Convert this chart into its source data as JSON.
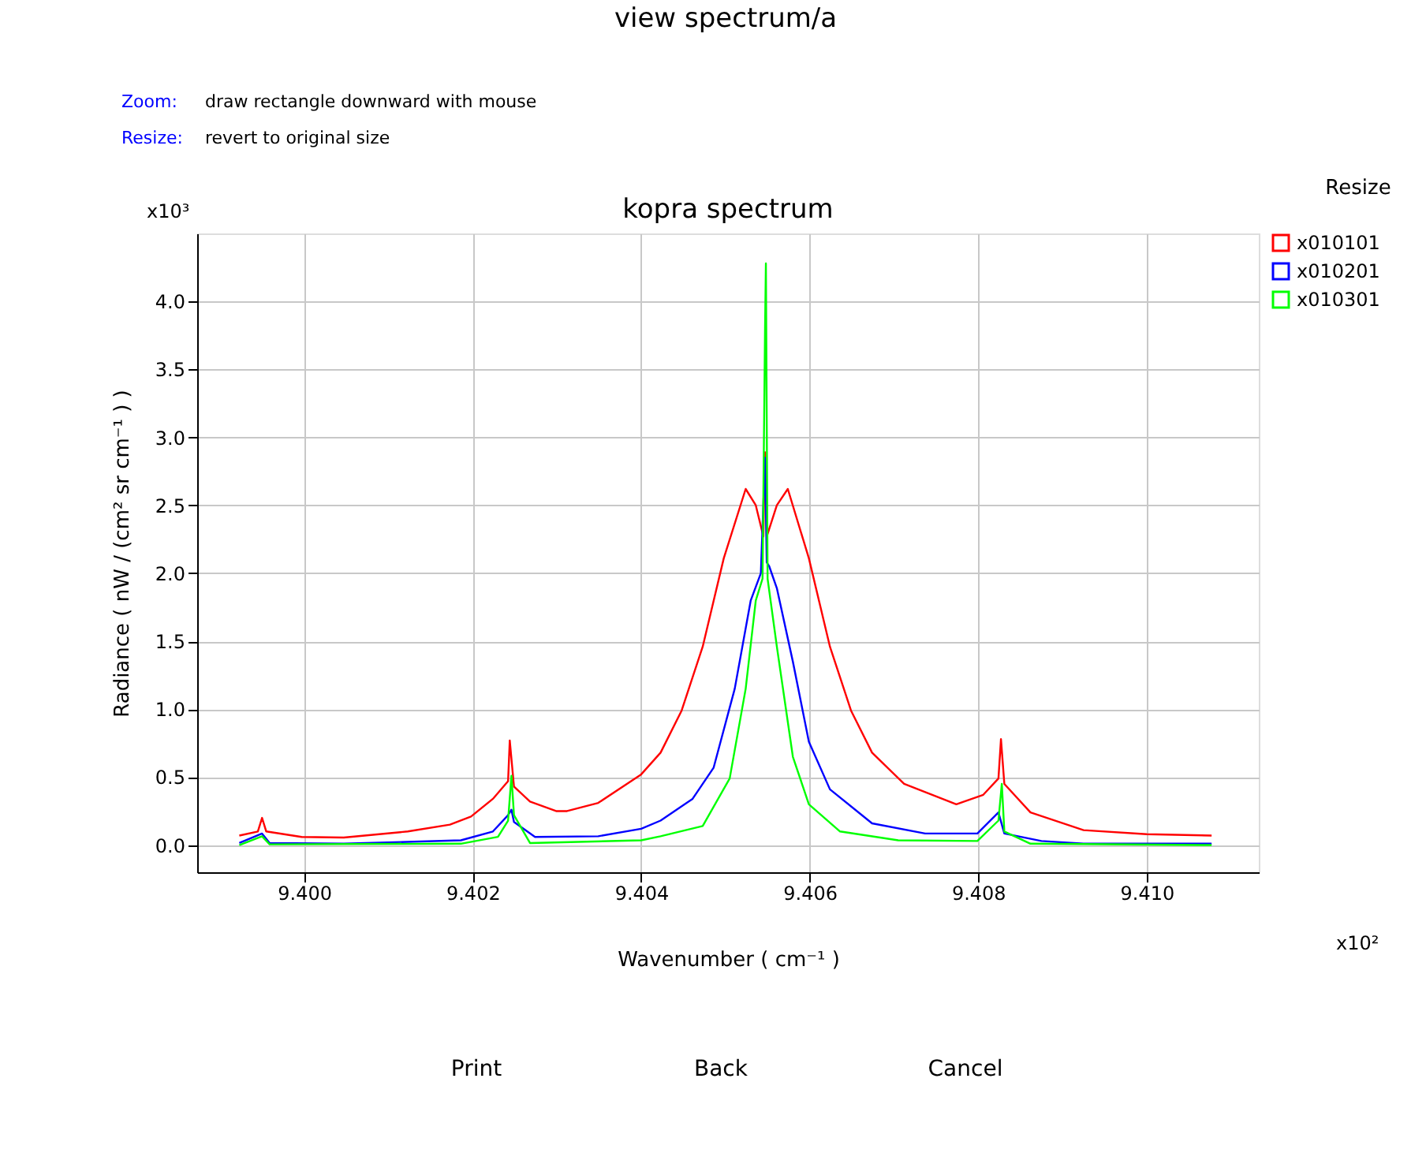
{
  "chart_data": {
    "type": "line",
    "title": "kopra spectrum",
    "xlabel": "Wavenumber ( cm⁻¹ )",
    "ylabel": "Radiance ( nW / (cm² sr cm⁻¹ ) )",
    "annotations": [
      "view spectrum/a",
      "Zoom:",
      "draw rectangle downward with mouse",
      "Resize:",
      "revert to original size",
      "Resize",
      "x10³",
      "x10²",
      "Print",
      "Back",
      "Cancel"
    ],
    "xlim": [
      9.39873,
      9.41133
    ],
    "ylim": [
      -0.2,
      4.5
    ],
    "xticks": [
      {
        "value": 9.4,
        "label": "9.400"
      },
      {
        "value": 9.402,
        "label": "9.402"
      },
      {
        "value": 9.404,
        "label": "9.404"
      },
      {
        "value": 9.406,
        "label": "9.406"
      },
      {
        "value": 9.408,
        "label": "9.408"
      },
      {
        "value": 9.41,
        "label": "9.410"
      }
    ],
    "yticks": [
      {
        "value": 0,
        "label": "0.0"
      },
      {
        "value": 0.5,
        "label": "0.5"
      },
      {
        "value": 1,
        "label": "1.0"
      },
      {
        "value": 1.5,
        "label": "1.5"
      },
      {
        "value": 2,
        "label": "2.0"
      },
      {
        "value": 2.5,
        "label": "2.5"
      },
      {
        "value": 3,
        "label": "3.0"
      },
      {
        "value": 3.5,
        "label": "3.5"
      },
      {
        "value": 4,
        "label": "4.0"
      }
    ],
    "grid": true,
    "legend": "top right",
    "marker": "none",
    "line_style": "solid",
    "series": [
      {
        "name": "x010101",
        "color": "#ff0000",
        "x": [
          9.39923,
          9.39945,
          9.3995,
          9.39955,
          9.39997,
          9.40047,
          9.40123,
          9.40173,
          9.40198,
          9.40224,
          9.40242,
          9.40244,
          9.40249,
          9.40268,
          9.40299,
          9.40312,
          9.40349,
          9.404,
          9.40423,
          9.40448,
          9.40473,
          9.40498,
          9.40524,
          9.40536,
          9.40545,
          9.40547,
          9.40549,
          9.40561,
          9.40574,
          9.40599,
          9.40624,
          9.40649,
          9.40674,
          9.40712,
          9.40774,
          9.40806,
          9.40824,
          9.40827,
          9.40831,
          9.40862,
          9.40925,
          9.41,
          9.41077
        ],
        "values": [
          0.07,
          0.1,
          0.2,
          0.1,
          0.06,
          0.055,
          0.1,
          0.15,
          0.21,
          0.34,
          0.47,
          0.77,
          0.43,
          0.32,
          0.25,
          0.25,
          0.31,
          0.52,
          0.68,
          0.99,
          1.46,
          2.11,
          2.62,
          2.5,
          2.27,
          2.89,
          2.27,
          2.5,
          2.62,
          2.11,
          1.46,
          0.99,
          0.68,
          0.45,
          0.3,
          0.37,
          0.49,
          0.78,
          0.45,
          0.24,
          0.11,
          0.08,
          0.07
        ]
      },
      {
        "name": "x010201",
        "color": "#0000ff",
        "x": [
          9.39923,
          9.3995,
          9.39959,
          9.40047,
          9.40186,
          9.40224,
          9.40242,
          9.40246,
          9.40249,
          9.40274,
          9.40349,
          9.404,
          9.40423,
          9.40461,
          9.40486,
          9.40511,
          9.4053,
          9.40542,
          9.40547,
          9.40549,
          9.40552,
          9.40561,
          9.4058,
          9.40599,
          9.40624,
          9.40674,
          9.40737,
          9.40799,
          9.40824,
          9.40831,
          9.40875,
          9.40925,
          9.41077
        ],
        "values": [
          0.015,
          0.085,
          0.015,
          0.01,
          0.035,
          0.1,
          0.22,
          0.26,
          0.17,
          0.06,
          0.065,
          0.12,
          0.18,
          0.34,
          0.57,
          1.15,
          1.8,
          2.0,
          2.85,
          2.08,
          2.05,
          1.89,
          1.35,
          0.76,
          0.41,
          0.16,
          0.085,
          0.085,
          0.24,
          0.085,
          0.03,
          0.01,
          0.01
        ]
      },
      {
        "name": "x010301",
        "color": "#00ff00",
        "x": [
          9.39923,
          9.3995,
          9.39959,
          9.40186,
          9.4023,
          9.40242,
          9.40246,
          9.40249,
          9.40268,
          9.404,
          9.40423,
          9.40473,
          9.40505,
          9.40524,
          9.40536,
          9.40544,
          9.40547,
          9.40548,
          9.4055,
          9.40561,
          9.4058,
          9.40599,
          9.40636,
          9.40705,
          9.40799,
          9.40824,
          9.40828,
          9.40831,
          9.40862,
          9.41077
        ],
        "values": [
          0.0,
          0.065,
          0.005,
          0.01,
          0.06,
          0.18,
          0.51,
          0.22,
          0.015,
          0.035,
          0.065,
          0.14,
          0.49,
          1.15,
          1.8,
          1.96,
          3.8,
          4.28,
          1.96,
          1.46,
          0.65,
          0.3,
          0.1,
          0.035,
          0.03,
          0.18,
          0.45,
          0.1,
          0.01,
          0.0
        ]
      }
    ]
  }
}
